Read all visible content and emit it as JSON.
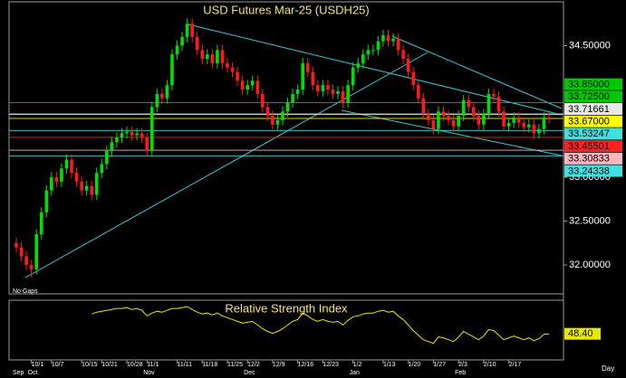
{
  "chart_data": {
    "type": "candlestick",
    "title": "USD Futures Mar-25 (USDH25)",
    "mode_label": "No Gaps",
    "period": "Day",
    "up_color": "#00e000",
    "down_color": "#ff1a1a",
    "categories": [
      null,
      null,
      null,
      "10/1",
      null,
      null,
      null,
      "10/7",
      null,
      null,
      null,
      null,
      null,
      "10/15",
      null,
      null,
      null,
      "10/21",
      null,
      null,
      null,
      null,
      "10/28",
      null,
      null,
      null,
      "11/1",
      null,
      null,
      null,
      null,
      null,
      "11/11",
      null,
      null,
      null,
      null,
      "11/18",
      null,
      null,
      null,
      null,
      "11/25",
      null,
      null,
      null,
      "12/2",
      null,
      null,
      null,
      null,
      "12/9",
      null,
      null,
      null,
      null,
      "12/16",
      null,
      null,
      null,
      null,
      "12/23",
      null,
      null,
      null,
      null,
      null,
      "1/2",
      null,
      null,
      null,
      null,
      null,
      "1/13",
      null,
      null,
      null,
      null,
      "1/20",
      null,
      null,
      null,
      null,
      "1/27",
      null,
      null,
      null,
      null,
      "2/3",
      null,
      null,
      null,
      null,
      "2/10",
      null,
      null,
      null,
      null,
      "2/17",
      null,
      null,
      null,
      null,
      null,
      null,
      null,
      null
    ],
    "months": [
      "Sep",
      null,
      null,
      "Oct",
      null,
      null,
      null,
      null,
      null,
      null,
      null,
      null,
      null,
      null,
      null,
      null,
      null,
      null,
      null,
      null,
      null,
      null,
      null,
      null,
      null,
      null,
      "Nov",
      null,
      null,
      null,
      null,
      null,
      null,
      null,
      null,
      null,
      null,
      null,
      null,
      null,
      null,
      null,
      null,
      null,
      null,
      null,
      "Dec",
      null,
      null,
      null,
      null,
      null,
      null,
      null,
      null,
      null,
      null,
      null,
      null,
      null,
      null,
      null,
      null,
      null,
      null,
      null,
      null,
      "Jan",
      null,
      null,
      null,
      null,
      null,
      null,
      null,
      null,
      null,
      null,
      null,
      null,
      null,
      null,
      null,
      null,
      null,
      null,
      null,
      null,
      "Feb",
      null,
      null,
      null,
      null,
      null,
      null,
      null,
      null,
      null,
      null,
      null,
      null,
      null,
      null,
      null,
      null,
      null,
      null
    ],
    "open": [
      32.25,
      32.2,
      32.1,
      32.0,
      31.95,
      32.35,
      32.6,
      32.85,
      33.0,
      32.95,
      33.1,
      33.2,
      33.05,
      32.95,
      32.85,
      32.9,
      32.8,
      33.05,
      33.15,
      33.3,
      33.4,
      33.45,
      33.5,
      33.52,
      33.48,
      33.5,
      33.45,
      33.3,
      33.8,
      33.95,
      33.9,
      34.05,
      34.4,
      34.5,
      34.6,
      34.75,
      34.6,
      34.45,
      34.35,
      34.4,
      34.3,
      34.45,
      34.3,
      34.25,
      34.2,
      34.1,
      34.0,
      34.05,
      34.1,
      33.95,
      33.8,
      33.7,
      33.6,
      33.65,
      33.75,
      33.85,
      33.95,
      34.0,
      34.3,
      34.2,
      34.05,
      33.98,
      34.05,
      34.0,
      33.95,
      33.98,
      33.85,
      34.05,
      34.25,
      34.3,
      34.4,
      34.45,
      34.45,
      34.55,
      34.62,
      34.55,
      34.58,
      34.45,
      34.35,
      34.2,
      34.05,
      33.9,
      33.72,
      33.65,
      33.55,
      33.75,
      33.7,
      33.65,
      33.58,
      33.7,
      33.88,
      33.8,
      33.7,
      33.6,
      33.72,
      33.95,
      33.92,
      33.75,
      33.58,
      33.62,
      33.68,
      33.62,
      33.57,
      33.6,
      33.5,
      33.55,
      33.68
    ],
    "high": [
      32.31,
      32.26,
      32.16,
      32.06,
      32.41,
      32.66,
      32.91,
      33.06,
      33.06,
      33.16,
      33.26,
      33.26,
      33.11,
      33.01,
      32.96,
      32.96,
      33.11,
      33.21,
      33.36,
      33.46,
      33.51,
      33.56,
      33.58,
      33.58,
      33.56,
      33.56,
      33.51,
      33.86,
      34.01,
      34.01,
      34.11,
      34.46,
      34.56,
      34.66,
      34.81,
      34.81,
      34.66,
      34.51,
      34.46,
      34.46,
      34.51,
      34.51,
      34.36,
      34.31,
      34.26,
      34.16,
      34.11,
      34.16,
      34.16,
      34.01,
      33.86,
      33.76,
      33.71,
      33.81,
      33.91,
      34.01,
      34.06,
      34.36,
      34.36,
      34.26,
      34.11,
      34.11,
      34.11,
      34.06,
      34.04,
      34.04,
      34.11,
      34.31,
      34.36,
      34.46,
      34.51,
      34.51,
      34.61,
      34.68,
      34.68,
      34.64,
      34.64,
      34.51,
      34.41,
      34.26,
      34.11,
      33.96,
      33.78,
      33.71,
      33.81,
      33.81,
      33.76,
      33.71,
      33.76,
      33.94,
      33.94,
      33.86,
      33.76,
      33.78,
      34.01,
      34.01,
      33.98,
      33.81,
      33.68,
      33.74,
      33.74,
      33.68,
      33.66,
      33.66,
      33.61,
      33.74,
      33.74
    ],
    "low": [
      32.14,
      32.04,
      31.94,
      31.86,
      31.89,
      32.29,
      32.54,
      32.79,
      32.89,
      32.89,
      33.04,
      32.99,
      32.89,
      32.79,
      32.79,
      32.74,
      32.74,
      32.99,
      33.09,
      33.24,
      33.34,
      33.39,
      33.44,
      33.42,
      33.42,
      33.39,
      33.24,
      33.24,
      33.74,
      33.84,
      33.84,
      33.99,
      34.34,
      34.44,
      34.54,
      34.54,
      34.39,
      34.29,
      34.29,
      34.24,
      34.24,
      34.24,
      34.19,
      34.14,
      34.04,
      33.94,
      33.94,
      33.99,
      33.89,
      33.74,
      33.64,
      33.54,
      33.54,
      33.59,
      33.69,
      33.79,
      33.89,
      33.94,
      34.14,
      33.99,
      33.92,
      33.92,
      33.94,
      33.89,
      33.89,
      33.79,
      33.79,
      33.99,
      34.19,
      34.24,
      34.34,
      34.39,
      34.39,
      34.49,
      34.49,
      34.49,
      34.39,
      34.29,
      34.14,
      33.99,
      33.84,
      33.66,
      33.59,
      33.49,
      33.49,
      33.64,
      33.59,
      33.52,
      33.52,
      33.64,
      33.74,
      33.64,
      33.54,
      33.54,
      33.66,
      33.86,
      33.69,
      33.52,
      33.52,
      33.56,
      33.56,
      33.51,
      33.51,
      33.44,
      33.44,
      33.49,
      33.61
    ],
    "close": [
      32.2,
      32.1,
      32.0,
      31.95,
      32.35,
      32.6,
      32.85,
      33.0,
      32.95,
      33.1,
      33.2,
      33.05,
      32.95,
      32.85,
      32.9,
      32.8,
      33.05,
      33.15,
      33.3,
      33.4,
      33.45,
      33.5,
      33.52,
      33.48,
      33.5,
      33.45,
      33.3,
      33.8,
      33.95,
      33.9,
      34.05,
      34.4,
      34.5,
      34.6,
      34.75,
      34.6,
      34.45,
      34.35,
      34.4,
      34.3,
      34.45,
      34.3,
      34.25,
      34.2,
      34.1,
      34.0,
      34.05,
      34.1,
      33.95,
      33.8,
      33.7,
      33.6,
      33.65,
      33.75,
      33.85,
      33.95,
      34.0,
      34.3,
      34.2,
      34.05,
      33.98,
      34.05,
      34.0,
      33.95,
      33.98,
      33.85,
      34.05,
      34.25,
      34.3,
      34.4,
      34.45,
      34.45,
      34.55,
      34.62,
      34.55,
      34.58,
      34.45,
      34.35,
      34.2,
      34.05,
      33.9,
      33.72,
      33.65,
      33.55,
      33.75,
      33.7,
      33.65,
      33.58,
      33.7,
      33.88,
      33.8,
      33.7,
      33.6,
      33.72,
      33.95,
      33.92,
      33.75,
      33.58,
      33.62,
      33.68,
      33.62,
      33.57,
      33.6,
      33.5,
      33.55,
      33.68,
      33.67
    ],
    "ylim": [
      31.67,
      35.0
    ],
    "yticks": [
      {
        "value": 32,
        "label": "32.00000"
      },
      {
        "value": 32.5,
        "label": "32.50000"
      },
      {
        "value": 33,
        "label": "33.00000"
      },
      {
        "value": 34.5,
        "label": "34.50000"
      }
    ],
    "levels": [
      {
        "value": 33.85,
        "label": "33.85000",
        "color": "#00c800"
      },
      {
        "value": 33.725,
        "label": "33.72500",
        "color": "#00c800"
      },
      {
        "value": 33.71661,
        "label": "33.71661",
        "color": "#e8e8e8"
      },
      {
        "value": 33.67,
        "label": "33.67000",
        "color": "#ffff00"
      },
      {
        "value": 33.53247,
        "label": "33.53247",
        "color": "#40e0e0"
      },
      {
        "value": 33.45501,
        "label": "33.45501",
        "color": "#ff2020"
      },
      {
        "value": 33.30833,
        "label": "33.30833",
        "color": "#ffb6c1"
      },
      {
        "value": 33.24338,
        "label": "33.24338",
        "color": "#40e0e0"
      }
    ],
    "rsi": {
      "title": "Relative Strength Index",
      "color": "#e8e800",
      "ylim": [
        20,
        85
      ],
      "values": [
        null,
        null,
        null,
        null,
        null,
        null,
        null,
        null,
        null,
        null,
        null,
        null,
        null,
        null,
        null,
        70,
        72,
        73,
        74,
        75,
        76,
        76,
        77,
        75,
        76,
        74,
        68,
        71,
        73,
        72,
        74,
        76,
        76,
        77,
        78,
        75,
        72,
        70,
        71,
        69,
        71,
        68,
        66,
        64,
        62,
        60,
        61,
        62,
        58,
        54,
        51,
        49,
        51,
        54,
        58,
        62,
        64,
        71,
        68,
        64,
        62,
        64,
        62,
        61,
        62,
        58,
        63,
        67,
        68,
        70,
        71,
        71,
        73,
        74,
        72,
        73,
        68,
        64,
        58,
        52,
        47,
        42,
        40,
        38,
        45,
        44,
        42,
        40,
        45,
        51,
        48,
        45,
        42,
        46,
        53,
        52,
        47,
        42,
        44,
        46,
        44,
        42,
        44,
        41,
        43,
        48,
        48.4
      ],
      "value_labels": [
        null,
        null,
        null,
        null,
        null,
        null,
        null,
        null,
        null,
        null,
        null,
        null,
        null,
        null,
        null,
        null,
        null,
        null,
        null,
        null,
        null,
        null,
        null,
        null,
        null,
        null,
        null,
        null,
        null,
        null,
        null,
        null,
        null,
        null,
        null,
        null,
        null,
        null,
        null,
        null,
        null,
        null,
        null,
        null,
        null,
        null,
        null,
        null,
        null,
        null,
        null,
        null,
        null,
        null,
        null,
        null,
        null,
        null,
        null,
        null,
        null,
        null,
        null,
        null,
        null,
        null,
        null,
        null,
        null,
        null,
        null,
        null,
        null,
        null,
        null,
        null,
        null,
        null,
        null,
        null,
        null,
        null,
        null,
        null,
        null,
        null,
        null,
        null,
        null,
        null,
        null,
        null,
        null,
        null,
        null,
        null,
        null,
        null,
        null,
        null,
        null,
        null,
        null,
        null,
        null,
        null,
        "48.40"
      ]
    }
  }
}
